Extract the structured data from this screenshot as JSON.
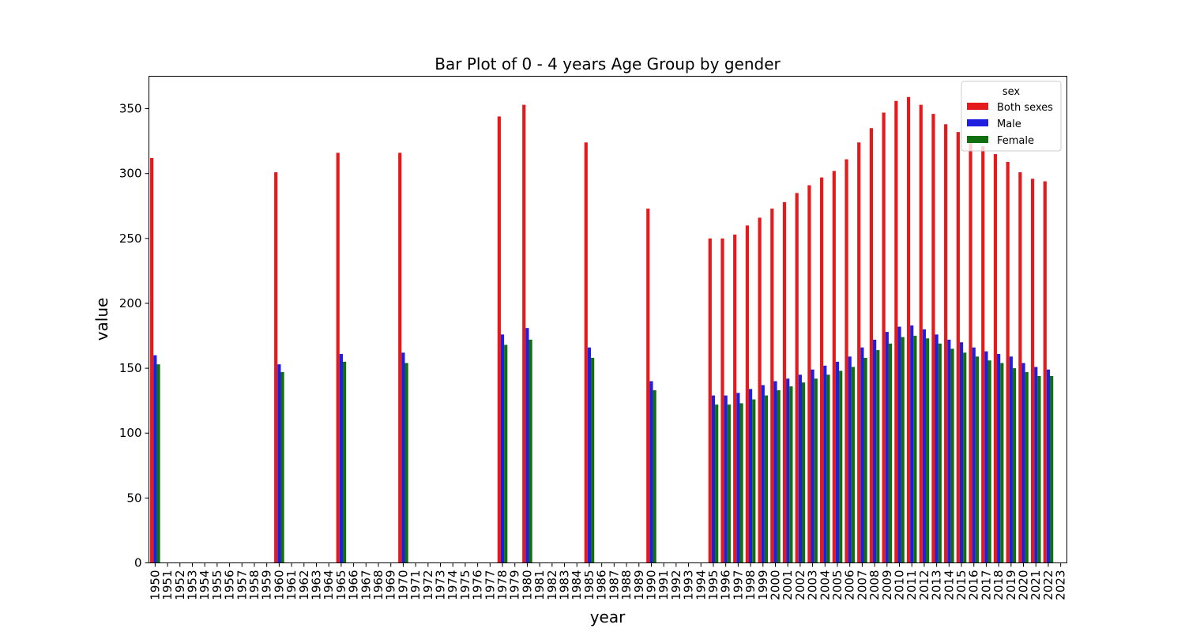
{
  "chart_data": {
    "type": "bar",
    "title": "Bar Plot of 0 - 4 years Age Group by gender",
    "xlabel": "year",
    "ylabel": "value",
    "ylim": [
      0,
      375
    ],
    "yticks": [
      0,
      50,
      100,
      150,
      200,
      250,
      300,
      350
    ],
    "grid": false,
    "legend": {
      "title": "sex",
      "placement": "top-right"
    },
    "categories": [
      "1950",
      "1951",
      "1952",
      "1953",
      "1954",
      "1955",
      "1956",
      "1957",
      "1958",
      "1959",
      "1960",
      "1961",
      "1962",
      "1963",
      "1964",
      "1965",
      "1966",
      "1967",
      "1968",
      "1969",
      "1970",
      "1971",
      "1972",
      "1973",
      "1974",
      "1975",
      "1976",
      "1977",
      "1978",
      "1979",
      "1980",
      "1981",
      "1982",
      "1983",
      "1984",
      "1985",
      "1986",
      "1987",
      "1988",
      "1989",
      "1990",
      "1991",
      "1992",
      "1993",
      "1994",
      "1995",
      "1996",
      "1997",
      "1998",
      "1999",
      "2000",
      "2001",
      "2002",
      "2003",
      "2004",
      "2005",
      "2006",
      "2007",
      "2008",
      "2009",
      "2010",
      "2011",
      "2012",
      "2013",
      "2014",
      "2015",
      "2016",
      "2017",
      "2018",
      "2019",
      "2020",
      "2021",
      "2022",
      "2023"
    ],
    "series": [
      {
        "name": "Both sexes",
        "color": "#e41a1c",
        "values": [
          312,
          null,
          null,
          null,
          null,
          null,
          null,
          null,
          null,
          null,
          301,
          null,
          null,
          null,
          null,
          316,
          null,
          null,
          null,
          null,
          316,
          null,
          null,
          null,
          null,
          null,
          null,
          null,
          344,
          null,
          353,
          null,
          null,
          null,
          null,
          324,
          null,
          null,
          null,
          null,
          273,
          null,
          null,
          null,
          null,
          250,
          250,
          253,
          260,
          266,
          273,
          278,
          285,
          291,
          297,
          302,
          311,
          324,
          335,
          347,
          356,
          359,
          353,
          346,
          338,
          332,
          327,
          321,
          315,
          309,
          301,
          296,
          294,
          null
        ]
      },
      {
        "name": "Male",
        "color": "#1f1fe0",
        "values": [
          160,
          null,
          null,
          null,
          null,
          null,
          null,
          null,
          null,
          null,
          153,
          null,
          null,
          null,
          null,
          161,
          null,
          null,
          null,
          null,
          162,
          null,
          null,
          null,
          null,
          null,
          null,
          null,
          176,
          null,
          181,
          null,
          null,
          null,
          null,
          166,
          null,
          null,
          null,
          null,
          140,
          null,
          null,
          null,
          null,
          129,
          129,
          131,
          134,
          137,
          140,
          142,
          145,
          149,
          152,
          155,
          159,
          166,
          172,
          178,
          182,
          183,
          180,
          176,
          172,
          170,
          166,
          163,
          161,
          159,
          154,
          151,
          149,
          null
        ]
      },
      {
        "name": "Female",
        "color": "#107010",
        "values": [
          153,
          null,
          null,
          null,
          null,
          null,
          null,
          null,
          null,
          null,
          147,
          null,
          null,
          null,
          null,
          155,
          null,
          null,
          null,
          null,
          154,
          null,
          null,
          null,
          null,
          null,
          null,
          null,
          168,
          null,
          172,
          null,
          null,
          null,
          null,
          158,
          null,
          null,
          null,
          null,
          133,
          null,
          null,
          null,
          null,
          122,
          122,
          123,
          126,
          129,
          133,
          136,
          139,
          142,
          145,
          148,
          151,
          158,
          164,
          169,
          174,
          175,
          173,
          169,
          165,
          162,
          159,
          156,
          154,
          150,
          147,
          144,
          144,
          null
        ]
      }
    ]
  }
}
